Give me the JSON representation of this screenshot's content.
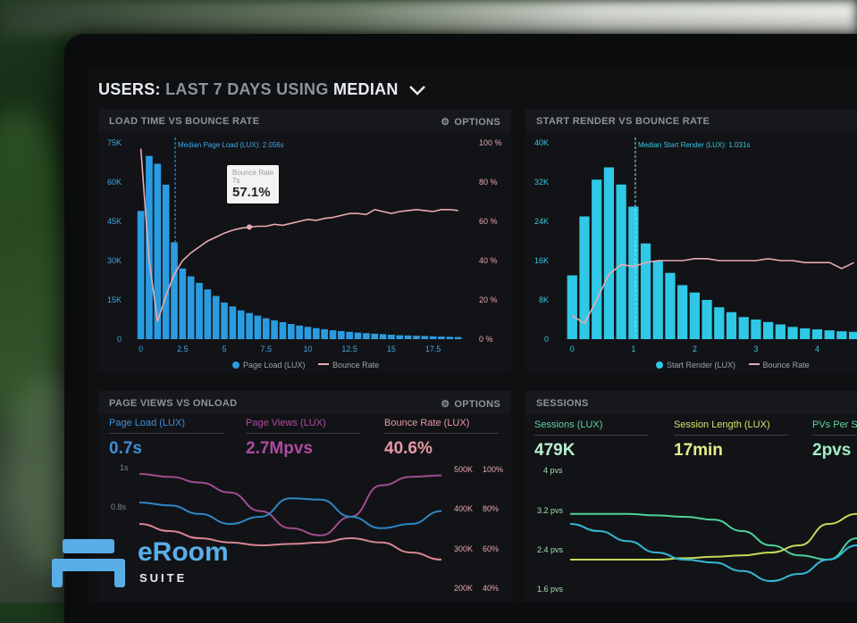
{
  "header": {
    "prefix": "USERS:",
    "range": "LAST 7 DAYS",
    "using": "USING",
    "method": "MEDIAN"
  },
  "panels": {
    "load_time": {
      "title": "LOAD TIME VS BOUNCE RATE",
      "options_label": "OPTIONS",
      "median_label": "Median Page Load (LUX): 2.056s",
      "tooltip": {
        "label": "Bounce Rate",
        "sub": "7s",
        "value": "57.1%"
      },
      "legend": [
        "Page Load (LUX)",
        "Bounce Rate"
      ]
    },
    "start_render": {
      "title": "START RENDER VS BOUNCE RATE",
      "median_label": "Median Start Render (LUX): 1.031s",
      "legend": [
        "Start Render (LUX)",
        "Bounce Rate"
      ]
    },
    "page_views": {
      "title": "PAGE VIEWS VS ONLOAD",
      "options_label": "OPTIONS",
      "kpis": [
        {
          "label": "Page Load (LUX)",
          "value": "0.7s"
        },
        {
          "label": "Page Views (LUX)",
          "value": "2.7Mpvs"
        },
        {
          "label": "Bounce Rate (LUX)",
          "value": "40.6%"
        }
      ],
      "left_ticks": [
        "1s",
        "0.8s"
      ],
      "right_ticks_views": [
        "500K",
        "400K",
        "300K",
        "200K"
      ],
      "right_ticks_pct": [
        "100%",
        "80%",
        "60%",
        "40%"
      ]
    },
    "sessions": {
      "title": "SESSIONS",
      "kpis": [
        {
          "label": "Sessions (LUX)",
          "value": "479K"
        },
        {
          "label": "Session Length (LUX)",
          "value": "17min"
        },
        {
          "label": "PVs Per Se",
          "value": "2pvs"
        }
      ],
      "left_ticks": [
        "4 pvs",
        "3.2 pvs",
        "2.4 pvs",
        "1.6 pvs"
      ]
    }
  },
  "chart_data": [
    {
      "type": "bar",
      "panel": "LOAD TIME VS BOUNCE RATE",
      "x": [
        0,
        0.5,
        1,
        1.5,
        2,
        2.5,
        3,
        3.5,
        4,
        4.5,
        5,
        5.5,
        6,
        6.5,
        7,
        7.5,
        8,
        8.5,
        9,
        9.5,
        10,
        10.5,
        11,
        11.5,
        12,
        12.5,
        13,
        13.5,
        14,
        14.5,
        15,
        15.5,
        16,
        16.5,
        17,
        17.5,
        18,
        18.5,
        19
      ],
      "series": [
        {
          "name": "Page Load (LUX)",
          "type": "bar",
          "axis": "left",
          "values": [
            49000,
            70000,
            67000,
            59000,
            37000,
            27000,
            24000,
            21500,
            19000,
            16500,
            14000,
            12500,
            11000,
            10000,
            9000,
            8000,
            7200,
            6500,
            5800,
            5200,
            4700,
            4200,
            3800,
            3400,
            3100,
            2800,
            2500,
            2300,
            2100,
            1900,
            1700,
            1500,
            1400,
            1300,
            1200,
            1100,
            1000,
            900,
            800
          ]
        },
        {
          "name": "Bounce Rate",
          "type": "line",
          "axis": "right",
          "values": [
            97,
            40,
            9,
            22,
            33,
            40,
            44,
            47,
            50,
            52,
            54,
            55.5,
            56.5,
            57.1,
            57.5,
            57.5,
            58.5,
            58,
            59,
            60,
            61,
            60.5,
            61.5,
            62,
            63,
            64,
            64,
            63.5,
            66,
            65,
            64,
            65,
            65.5,
            66,
            65.5,
            65,
            66,
            66,
            65.5
          ]
        }
      ],
      "xticks": [
        "0",
        "2.5",
        "5",
        "7.5",
        "10",
        "12.5",
        "15",
        "17.5"
      ],
      "yticks_left": [
        "0",
        "15K",
        "30K",
        "45K",
        "60K",
        "75K"
      ],
      "yticks_right": [
        "0 %",
        "20 %",
        "40 %",
        "60 %",
        "80 %",
        "100 %"
      ],
      "ylim_left": [
        0,
        75000
      ],
      "ylim_right": [
        0,
        100
      ],
      "xlim": [
        -0.3,
        19.5
      ],
      "median_x": 2.056,
      "colors": {
        "bars": "#2b9be0",
        "line": "#e8aab2"
      }
    },
    {
      "type": "bar",
      "panel": "START RENDER VS BOUNCE RATE",
      "x": [
        0,
        0.2,
        0.4,
        0.6,
        0.8,
        1,
        1.2,
        1.4,
        1.6,
        1.8,
        2,
        2.2,
        2.4,
        2.6,
        2.8,
        3,
        3.2,
        3.4,
        3.6,
        3.8,
        4,
        4.2,
        4.4,
        4.6
      ],
      "series": [
        {
          "name": "Start Render (LUX)",
          "type": "bar",
          "axis": "left",
          "values": [
            13000,
            25000,
            32500,
            35000,
            31500,
            27000,
            19500,
            16000,
            13500,
            11000,
            9500,
            8000,
            6500,
            5500,
            4500,
            4000,
            3500,
            3000,
            2500,
            2200,
            2000,
            1800,
            1600,
            1500
          ]
        },
        {
          "name": "Bounce Rate",
          "type": "line",
          "axis": "right",
          "values": [
            12,
            8,
            20,
            33,
            38,
            37,
            39,
            40,
            40,
            40,
            41,
            41,
            40,
            40,
            40,
            40,
            41,
            40,
            40,
            39,
            39,
            39,
            36,
            39
          ]
        }
      ],
      "xticks": [
        "0",
        "1",
        "2",
        "3",
        "4"
      ],
      "yticks_left": [
        "0",
        "8K",
        "16K",
        "24K",
        "32K",
        "40K"
      ],
      "ylim_left": [
        0,
        40000
      ],
      "ylim_right": [
        0,
        100
      ],
      "xlim": [
        -0.15,
        4.65
      ],
      "median_x": 1.031,
      "colors": {
        "bars": "#2fc8e6",
        "line": "#e8aab2"
      }
    },
    {
      "type": "line",
      "panel": "PAGE VIEWS VS ONLOAD",
      "x": [
        0,
        1,
        2,
        3,
        4,
        5,
        6,
        7,
        8,
        9,
        10
      ],
      "series": [
        {
          "color": "#a04c8f",
          "values": [
            0.9,
            0.88,
            0.84,
            0.77,
            0.64,
            0.52,
            0.47,
            0.6,
            0.82,
            0.88,
            0.89
          ]
        },
        {
          "color": "#2f86c6",
          "values": [
            0.7,
            0.68,
            0.62,
            0.55,
            0.6,
            0.73,
            0.72,
            0.6,
            0.52,
            0.55,
            0.64
          ]
        },
        {
          "color": "#d98592",
          "values": [
            0.55,
            0.5,
            0.45,
            0.42,
            0.4,
            0.41,
            0.42,
            0.45,
            0.42,
            0.35,
            0.3
          ]
        }
      ]
    },
    {
      "type": "line",
      "panel": "SESSIONS",
      "x": [
        0,
        1,
        2,
        3,
        4,
        5,
        6,
        7,
        8,
        9,
        10
      ],
      "series": [
        {
          "color": "#4fcf9a",
          "values": [
            0.62,
            0.62,
            0.62,
            0.61,
            0.6,
            0.58,
            0.5,
            0.4,
            0.33,
            0.3,
            0.45
          ]
        },
        {
          "color": "#c7d85a",
          "values": [
            0.3,
            0.3,
            0.3,
            0.3,
            0.31,
            0.32,
            0.33,
            0.35,
            0.4,
            0.55,
            0.62
          ]
        },
        {
          "color": "#34b8d8",
          "values": [
            0.55,
            0.5,
            0.43,
            0.35,
            0.3,
            0.28,
            0.22,
            0.15,
            0.2,
            0.3,
            0.4
          ]
        }
      ]
    }
  ],
  "logo": {
    "name": "eRoom",
    "suite": "SUITE"
  }
}
